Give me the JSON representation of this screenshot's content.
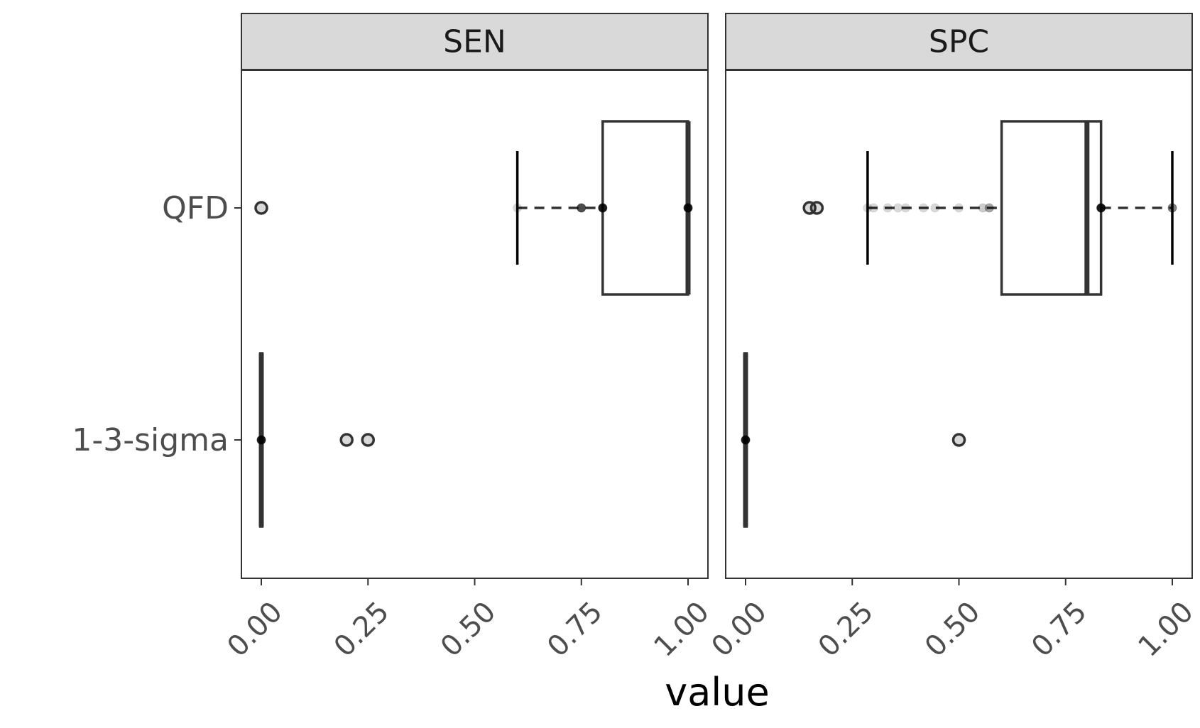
{
  "chart_data": {
    "type": "box",
    "orientation": "horizontal",
    "facet_variable": "",
    "xlabel": "value",
    "ylabel": "",
    "xlim": [
      0,
      1
    ],
    "x_ticks": [
      0,
      0.25,
      0.5,
      0.75,
      1.0
    ],
    "x_tick_labels": [
      "0.00",
      "0.25",
      "0.50",
      "0.75",
      "1.00"
    ],
    "categories": [
      "QFD",
      "1-3-sigma"
    ],
    "grid": false,
    "colors": {
      "strip_fill": "#d9d9d9",
      "panel_border": "#333333",
      "box_line": "#333333",
      "whisker": "#000000",
      "tick_text": "#4d4d4d"
    },
    "panels": [
      {
        "name": "SEN",
        "boxes": [
          {
            "category": "QFD",
            "q1": 0.8,
            "median": 1.0,
            "q3": 1.0,
            "whisker_low": 0.6,
            "whisker_high": 1.0,
            "outliers": [
              0.0
            ],
            "points": [
              {
                "x": 0.6,
                "alpha": 0.15
              },
              {
                "x": 0.75,
                "alpha": 0.7
              },
              {
                "x": 0.8,
                "alpha": 0.9
              },
              {
                "x": 1.0,
                "alpha": 0.9
              }
            ]
          },
          {
            "category": "1-3-sigma",
            "q1": 0.0,
            "median": 0.0,
            "q3": 0.0,
            "whisker_low": 0.0,
            "whisker_high": 0.0,
            "outliers": [
              0.2,
              0.25
            ],
            "points": [
              {
                "x": 0.0,
                "alpha": 0.9
              }
            ]
          }
        ]
      },
      {
        "name": "SPC",
        "boxes": [
          {
            "category": "QFD",
            "q1": 0.6,
            "median": 0.8,
            "q3": 0.833,
            "whisker_low": 0.286,
            "whisker_high": 1.0,
            "outliers": [
              0.15,
              0.167
            ],
            "points": [
              {
                "x": 0.286,
                "alpha": 0.15
              },
              {
                "x": 0.3,
                "alpha": 0.15
              },
              {
                "x": 0.333,
                "alpha": 0.15
              },
              {
                "x": 0.357,
                "alpha": 0.15
              },
              {
                "x": 0.375,
                "alpha": 0.15
              },
              {
                "x": 0.417,
                "alpha": 0.15
              },
              {
                "x": 0.444,
                "alpha": 0.15
              },
              {
                "x": 0.5,
                "alpha": 0.15
              },
              {
                "x": 0.556,
                "alpha": 0.2
              },
              {
                "x": 0.571,
                "alpha": 0.35
              },
              {
                "x": 0.833,
                "alpha": 0.9
              },
              {
                "x": 1.0,
                "alpha": 0.5
              }
            ]
          },
          {
            "category": "1-3-sigma",
            "q1": 0.0,
            "median": 0.0,
            "q3": 0.0,
            "whisker_low": 0.0,
            "whisker_high": 0.0,
            "outliers": [
              0.5
            ],
            "points": [
              {
                "x": 0.0,
                "alpha": 0.9
              }
            ]
          }
        ]
      }
    ]
  }
}
